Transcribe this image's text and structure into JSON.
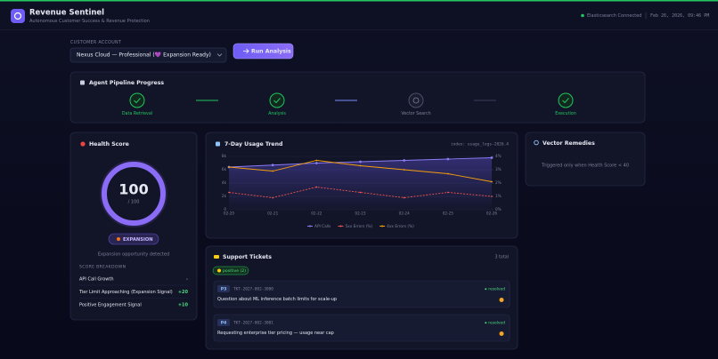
{
  "header": {
    "title": "Revenue Sentinel",
    "subtitle": "Autonomous Customer Success & Revenue Protection",
    "status": "Elasticsearch Connected",
    "datetime": "Feb 26, 2026, 09:46 PM"
  },
  "account": {
    "label": "CUSTOMER ACCOUNT",
    "selected": "Nexus Cloud — Professional (💜 Expansion Ready)",
    "button": "Run Analysis"
  },
  "pipeline": {
    "title": "Agent Pipeline Progress",
    "steps": [
      "Data Retrieval",
      "Analysis",
      "Vector Search",
      "Execution"
    ]
  },
  "health": {
    "title": "Health Score",
    "score": 100,
    "scale": {
      "value": 100,
      "label": "/ 100"
    },
    "badge": "EXPANSION",
    "note": "Expansion opportunity detected",
    "breakdown_title": "SCORE BREAKDOWN",
    "breakdown": [
      {
        "label": "API Call Growth",
        "value": "-"
      },
      {
        "label": "Tier Limit Approaching (Expansion Signal)",
        "value": "+20"
      },
      {
        "label": "Positive Engagement Signal",
        "value": "+10"
      }
    ]
  },
  "chart_data": {
    "type": "line",
    "title": "7-Day Usage Trend",
    "subtitle": "index: usage_logs-2026.4",
    "categories": [
      "02-20",
      "02-21",
      "02-22",
      "02-23",
      "02-24",
      "02-25",
      "02-26"
    ],
    "ylim": [
      0,
      8000
    ],
    "yticks": [
      0,
      {
        "value": 2000,
        "label": "2k"
      },
      {
        "value": 4000,
        "label": "4k"
      },
      {
        "value": 6000,
        "label": "6k"
      },
      {
        "value": 8000,
        "label": "8k"
      }
    ],
    "y2lim": [
      0,
      4
    ],
    "y2ticks": [
      {
        "value": 0,
        "label": "0%"
      },
      {
        "value": 1,
        "label": "1%"
      },
      {
        "value": 2,
        "label": "2%"
      },
      {
        "value": 3,
        "label": "3%"
      },
      {
        "value": 4,
        "label": "4%"
      }
    ],
    "grid": true,
    "series": [
      {
        "name": "API Calls",
        "color": "#8b7cf6",
        "values": [
          6400,
          6700,
          7000,
          7200,
          7400,
          7600,
          7800
        ]
      },
      {
        "name": "5xx Errors (%)",
        "color": "#ef5350",
        "axis": "y2",
        "dashed": true,
        "values": [
          1.3,
          0.9,
          1.7,
          1.3,
          0.9,
          1.3,
          1.0
        ]
      },
      {
        "name": "4xx Errors (%)",
        "color": "#f59e0b",
        "axis": "y2",
        "values": [
          3.2,
          2.9,
          3.7,
          3.3,
          3.0,
          2.7,
          2.1
        ]
      }
    ]
  },
  "remedies": {
    "title": "Vector Remedies",
    "note": "Triggered only when Health Score < 40"
  },
  "tickets": {
    "title": "Support Tickets",
    "count": "3 total",
    "sentiment": "positive (2)",
    "items": [
      {
        "priority": "P3",
        "id": "TKT-2027-002-3000",
        "status": "resolved",
        "text": "Question about ML inference batch limits for scale-up"
      },
      {
        "priority": "P4",
        "id": "TKT-2027-002-3001",
        "status": "resolved",
        "text": "Requesting enterprise tier pricing — usage near cap"
      }
    ]
  }
}
